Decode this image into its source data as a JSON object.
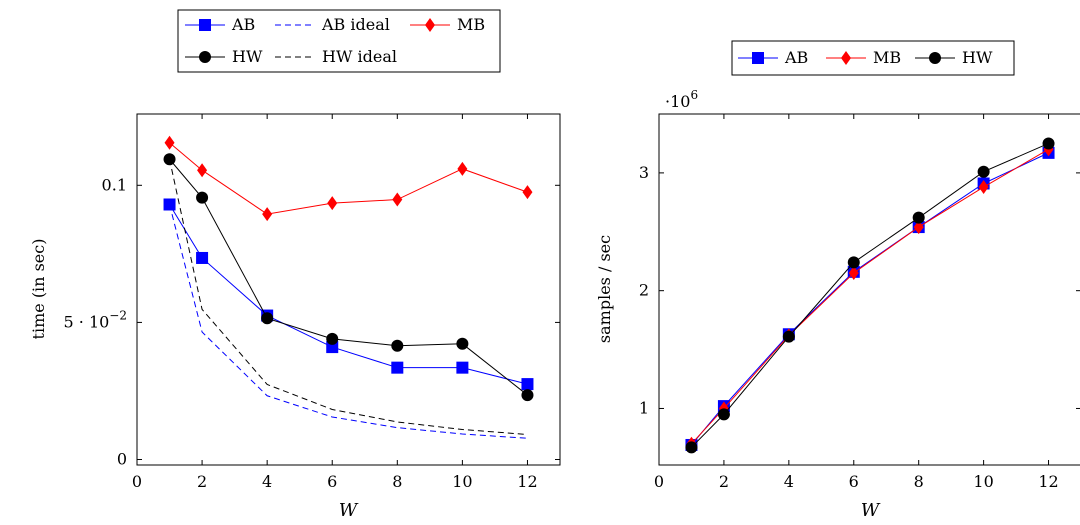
{
  "chart_data": [
    {
      "type": "line",
      "xlabel": "W",
      "ylabel": "time (in sec)",
      "xlim": [
        0,
        13
      ],
      "ylim": [
        -0.002,
        0.126
      ],
      "xticks": [
        {
          "value": 0,
          "label": "0"
        },
        {
          "value": 2,
          "label": "2"
        },
        {
          "value": 4,
          "label": "4"
        },
        {
          "value": 6,
          "label": "6"
        },
        {
          "value": 8,
          "label": "8"
        },
        {
          "value": 10,
          "label": "10"
        },
        {
          "value": 12,
          "label": "12"
        }
      ],
      "yticks": [
        {
          "value": 0,
          "label": "0"
        },
        {
          "value": 0.05,
          "label": "5 · 10",
          "exponent": "−2"
        },
        {
          "value": 0.1,
          "label": "0.1"
        }
      ],
      "legend": {
        "placement": "top",
        "columns": 3
      },
      "series": [
        {
          "name": "AB",
          "color": "#0000ff",
          "marker": "square",
          "dash": false,
          "x": [
            1,
            2,
            4,
            6,
            8,
            10,
            12
          ],
          "y": [
            0.093,
            0.0735,
            0.0525,
            0.041,
            0.0335,
            0.0335,
            0.0275
          ]
        },
        {
          "name": "AB ideal",
          "color": "#0000ff",
          "marker": "none",
          "dash": true,
          "x": [
            1,
            2,
            4,
            6,
            8,
            10,
            12
          ],
          "y": [
            0.093,
            0.0465,
            0.02325,
            0.0155,
            0.011625,
            0.0093,
            0.00775
          ]
        },
        {
          "name": "MB",
          "color": "#ff0000",
          "marker": "diamond",
          "dash": false,
          "x": [
            1,
            2,
            4,
            6,
            8,
            10,
            12
          ],
          "y": [
            0.1155,
            0.1055,
            0.0895,
            0.0935,
            0.0948,
            0.106,
            0.0975
          ]
        },
        {
          "name": "HW",
          "color": "#000000",
          "marker": "circle",
          "dash": false,
          "x": [
            1,
            2,
            4,
            6,
            8,
            10,
            12
          ],
          "y": [
            0.1095,
            0.0955,
            0.0515,
            0.044,
            0.0415,
            0.0422,
            0.0235
          ]
        },
        {
          "name": "HW ideal",
          "color": "#000000",
          "marker": "none",
          "dash": true,
          "x": [
            1,
            2,
            4,
            6,
            8,
            10,
            12
          ],
          "y": [
            0.1095,
            0.05475,
            0.027375,
            0.01825,
            0.0136875,
            0.01095,
            0.009125
          ]
        }
      ]
    },
    {
      "type": "line",
      "xlabel": "W",
      "ylabel": "samples / sec",
      "scale_label": "·10",
      "scale_exponent": "6",
      "xlim": [
        0,
        13
      ],
      "ylim": [
        0.52,
        3.5
      ],
      "xticks": [
        {
          "value": 0,
          "label": "0"
        },
        {
          "value": 2,
          "label": "2"
        },
        {
          "value": 4,
          "label": "4"
        },
        {
          "value": 6,
          "label": "6"
        },
        {
          "value": 8,
          "label": "8"
        },
        {
          "value": 10,
          "label": "10"
        },
        {
          "value": 12,
          "label": "12"
        }
      ],
      "yticks": [
        {
          "value": 1,
          "label": "1"
        },
        {
          "value": 2,
          "label": "2"
        },
        {
          "value": 3,
          "label": "3"
        }
      ],
      "legend": {
        "placement": "top",
        "columns": 3
      },
      "series": [
        {
          "name": "AB",
          "color": "#0000ff",
          "marker": "square",
          "dash": false,
          "x": [
            1,
            2,
            4,
            6,
            8,
            10,
            12
          ],
          "y": [
            0.69,
            1.02,
            1.63,
            2.16,
            2.54,
            2.91,
            3.17
          ]
        },
        {
          "name": "MB",
          "color": "#ff0000",
          "marker": "diamond",
          "dash": false,
          "x": [
            1,
            2,
            4,
            6,
            8,
            10,
            12
          ],
          "y": [
            0.7,
            1.0,
            1.62,
            2.15,
            2.54,
            2.88,
            3.2
          ]
        },
        {
          "name": "HW",
          "color": "#000000",
          "marker": "circle",
          "dash": false,
          "x": [
            1,
            2,
            4,
            6,
            8,
            10,
            12
          ],
          "y": [
            0.67,
            0.95,
            1.61,
            2.24,
            2.62,
            3.01,
            3.25
          ]
        }
      ]
    }
  ]
}
